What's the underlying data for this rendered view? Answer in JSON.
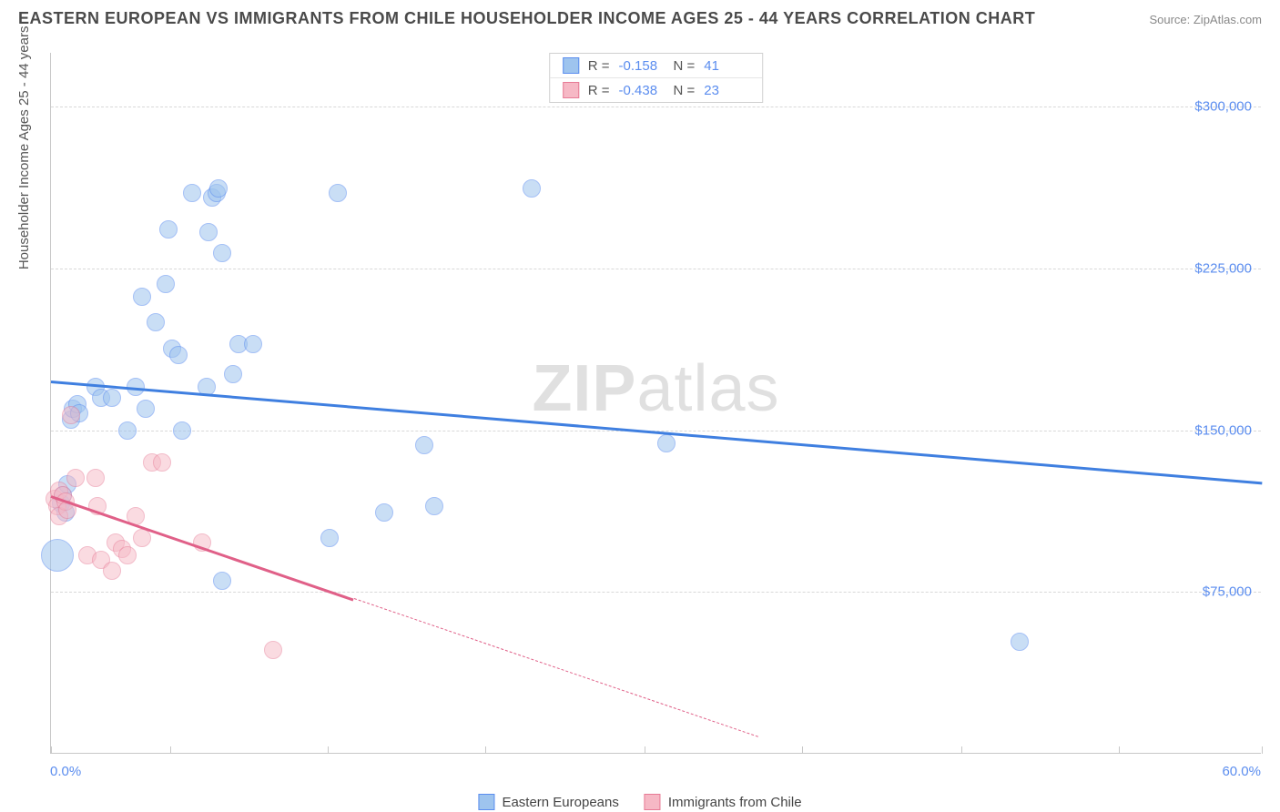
{
  "header": {
    "title": "EASTERN EUROPEAN VS IMMIGRANTS FROM CHILE HOUSEHOLDER INCOME AGES 25 - 44 YEARS CORRELATION CHART",
    "source": "Source: ZipAtlas.com"
  },
  "watermark": {
    "z": "ZIP",
    "rest": "atlas"
  },
  "chart": {
    "type": "scatter",
    "ylabel": "Householder Income Ages 25 - 44 years",
    "xlim": [
      0,
      60
    ],
    "ylim": [
      0,
      325000
    ],
    "xticks": [
      {
        "v": 0,
        "label": "0.0%"
      },
      {
        "v": 5.9,
        "label": ""
      },
      {
        "v": 13.7,
        "label": ""
      },
      {
        "v": 21.5,
        "label": ""
      },
      {
        "v": 29.4,
        "label": ""
      },
      {
        "v": 37.2,
        "label": ""
      },
      {
        "v": 45.1,
        "label": ""
      },
      {
        "v": 52.9,
        "label": ""
      },
      {
        "v": 60,
        "label": "60.0%"
      }
    ],
    "yticks": [
      {
        "v": 75000,
        "label": "$75,000"
      },
      {
        "v": 150000,
        "label": "$150,000"
      },
      {
        "v": 225000,
        "label": "$225,000"
      },
      {
        "v": 300000,
        "label": "$300,000"
      }
    ],
    "grid_color": "#d8d8d8",
    "background_color": "#ffffff",
    "series": [
      {
        "key": "blue",
        "name": "Eastern Europeans",
        "R": "-0.158",
        "N": "41",
        "fill": "#9ec4ee",
        "stroke": "#5b8def",
        "fill_opacity": 0.55,
        "line_color": "#3f7fe0",
        "trend": {
          "x1": 0,
          "y1": 173000,
          "x2": 60,
          "y2": 126000
        },
        "marker_r": 10,
        "points": [
          {
            "x": 0.3,
            "y": 92000,
            "r": 18
          },
          {
            "x": 0.5,
            "y": 116000
          },
          {
            "x": 0.6,
            "y": 120000
          },
          {
            "x": 0.7,
            "y": 112000
          },
          {
            "x": 0.8,
            "y": 125000
          },
          {
            "x": 1.0,
            "y": 155000
          },
          {
            "x": 1.1,
            "y": 160000
          },
          {
            "x": 1.3,
            "y": 162000
          },
          {
            "x": 1.4,
            "y": 158000
          },
          {
            "x": 2.2,
            "y": 170000
          },
          {
            "x": 2.5,
            "y": 165000
          },
          {
            "x": 3.0,
            "y": 165000
          },
          {
            "x": 3.8,
            "y": 150000
          },
          {
            "x": 4.2,
            "y": 170000
          },
          {
            "x": 4.5,
            "y": 212000
          },
          {
            "x": 4.7,
            "y": 160000
          },
          {
            "x": 5.2,
            "y": 200000
          },
          {
            "x": 5.7,
            "y": 218000
          },
          {
            "x": 5.8,
            "y": 243000
          },
          {
            "x": 6.0,
            "y": 188000
          },
          {
            "x": 6.3,
            "y": 185000
          },
          {
            "x": 6.5,
            "y": 150000
          },
          {
            "x": 7.0,
            "y": 260000
          },
          {
            "x": 7.7,
            "y": 170000
          },
          {
            "x": 7.8,
            "y": 242000
          },
          {
            "x": 8.0,
            "y": 258000
          },
          {
            "x": 8.2,
            "y": 260000
          },
          {
            "x": 8.3,
            "y": 262000
          },
          {
            "x": 8.5,
            "y": 232000
          },
          {
            "x": 8.5,
            "y": 80000
          },
          {
            "x": 9.0,
            "y": 176000
          },
          {
            "x": 9.3,
            "y": 190000
          },
          {
            "x": 10.0,
            "y": 190000
          },
          {
            "x": 13.8,
            "y": 100000
          },
          {
            "x": 14.2,
            "y": 260000
          },
          {
            "x": 16.5,
            "y": 112000
          },
          {
            "x": 18.5,
            "y": 143000
          },
          {
            "x": 19.0,
            "y": 115000
          },
          {
            "x": 23.8,
            "y": 262000
          },
          {
            "x": 30.5,
            "y": 144000
          },
          {
            "x": 48.0,
            "y": 52000
          }
        ]
      },
      {
        "key": "pink",
        "name": "Immigrants from Chile",
        "R": "-0.438",
        "N": "23",
        "fill": "#f6b8c5",
        "stroke": "#e77a95",
        "fill_opacity": 0.5,
        "line_color": "#e06088",
        "trend": {
          "x1": 0,
          "y1": 120000,
          "x2": 15,
          "y2": 72000
        },
        "trend_dash": {
          "x1": 15,
          "y1": 72000,
          "x2": 35,
          "y2": 8000
        },
        "marker_r": 10,
        "points": [
          {
            "x": 0.2,
            "y": 118000
          },
          {
            "x": 0.3,
            "y": 115000
          },
          {
            "x": 0.4,
            "y": 122000
          },
          {
            "x": 0.4,
            "y": 110000
          },
          {
            "x": 0.6,
            "y": 120000
          },
          {
            "x": 0.7,
            "y": 117000
          },
          {
            "x": 0.8,
            "y": 113000
          },
          {
            "x": 1.0,
            "y": 157000
          },
          {
            "x": 1.2,
            "y": 128000
          },
          {
            "x": 1.8,
            "y": 92000
          },
          {
            "x": 2.2,
            "y": 128000
          },
          {
            "x": 2.3,
            "y": 115000
          },
          {
            "x": 2.5,
            "y": 90000
          },
          {
            "x": 3.0,
            "y": 85000
          },
          {
            "x": 3.2,
            "y": 98000
          },
          {
            "x": 3.5,
            "y": 95000
          },
          {
            "x": 3.8,
            "y": 92000
          },
          {
            "x": 4.2,
            "y": 110000
          },
          {
            "x": 4.5,
            "y": 100000
          },
          {
            "x": 5.0,
            "y": 135000
          },
          {
            "x": 5.5,
            "y": 135000
          },
          {
            "x": 7.5,
            "y": 98000
          },
          {
            "x": 11.0,
            "y": 48000
          }
        ]
      }
    ],
    "legend": [
      {
        "swatch_fill": "#9ec4ee",
        "swatch_stroke": "#5b8def",
        "label": "Eastern Europeans"
      },
      {
        "swatch_fill": "#f6b8c5",
        "swatch_stroke": "#e77a95",
        "label": "Immigrants from Chile"
      }
    ],
    "stats_labels": {
      "R": "R =",
      "N": "N ="
    }
  }
}
